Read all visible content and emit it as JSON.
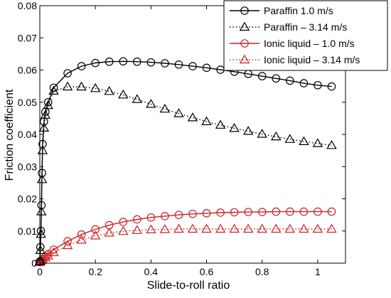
{
  "chart_data": {
    "type": "line",
    "title": "",
    "xlabel": "Slide-to-roll ratio",
    "ylabel": "Friction coefficient",
    "xlim": [
      0,
      1.1
    ],
    "ylim": [
      0,
      0.08
    ],
    "x_ticks": [
      0,
      0.2,
      0.4,
      0.6,
      0.8,
      1
    ],
    "x_tick_labels": [
      "0",
      "0.2",
      "0.4",
      "0.6",
      "0.8",
      "1"
    ],
    "y_ticks": [
      0,
      0.01,
      0.02,
      0.03,
      0.04,
      0.05,
      0.06,
      0.07,
      0.08
    ],
    "y_tick_labels": [
      "0",
      "0.01",
      "0.02",
      "0.03",
      "0.04",
      "0.05",
      "0.06",
      "0.07",
      "0.08"
    ],
    "grid": false,
    "legend_position": "top-right",
    "series": [
      {
        "name": "Paraffin 1.0 m/s",
        "color": "#000000",
        "line_style": "solid",
        "marker": "circle",
        "x": [
          0,
          0.002,
          0.004,
          0.006,
          0.008,
          0.01,
          0.015,
          0.02,
          0.03,
          0.05,
          0.1,
          0.15,
          0.2,
          0.25,
          0.3,
          0.35,
          0.4,
          0.45,
          0.5,
          0.55,
          0.6,
          0.65,
          0.7,
          0.75,
          0.8,
          0.85,
          0.9,
          0.95,
          1.0,
          1.05
        ],
        "y": [
          0.0005,
          0.005,
          0.01,
          0.018,
          0.028,
          0.037,
          0.044,
          0.047,
          0.05,
          0.0545,
          0.059,
          0.0612,
          0.0622,
          0.0626,
          0.0627,
          0.0626,
          0.0624,
          0.0621,
          0.0617,
          0.0612,
          0.0607,
          0.0601,
          0.0595,
          0.0588,
          0.0581,
          0.0574,
          0.0567,
          0.0559,
          0.0553,
          0.0549
        ]
      },
      {
        "name": "Paraffin – 3.14 m/s",
        "color": "#000000",
        "line_style": "dotted",
        "marker": "triangle",
        "x": [
          0,
          0.002,
          0.004,
          0.006,
          0.008,
          0.01,
          0.015,
          0.02,
          0.03,
          0.05,
          0.1,
          0.15,
          0.2,
          0.25,
          0.3,
          0.35,
          0.4,
          0.45,
          0.5,
          0.55,
          0.6,
          0.65,
          0.7,
          0.75,
          0.8,
          0.85,
          0.9,
          0.95,
          1.0,
          1.05
        ],
        "y": [
          0.0005,
          0.004,
          0.009,
          0.016,
          0.026,
          0.035,
          0.042,
          0.046,
          0.049,
          0.0535,
          0.0548,
          0.0548,
          0.0543,
          0.0534,
          0.0523,
          0.0509,
          0.0494,
          0.0479,
          0.0465,
          0.0452,
          0.044,
          0.0429,
          0.0419,
          0.041,
          0.0401,
          0.0393,
          0.0385,
          0.0378,
          0.0372,
          0.0366
        ]
      },
      {
        "name": "Ionic liquid – 1.0 m/s",
        "color": "#cc2222",
        "line_style": "solid",
        "marker": "circle",
        "x": [
          0,
          0.005,
          0.01,
          0.02,
          0.03,
          0.05,
          0.1,
          0.15,
          0.2,
          0.25,
          0.3,
          0.35,
          0.4,
          0.45,
          0.5,
          0.55,
          0.6,
          0.65,
          0.7,
          0.75,
          0.8,
          0.85,
          0.9,
          0.95,
          1.0,
          1.05
        ],
        "y": [
          0.0003,
          0.0008,
          0.0013,
          0.002,
          0.0028,
          0.0042,
          0.0068,
          0.0089,
          0.0105,
          0.0118,
          0.0128,
          0.0136,
          0.0142,
          0.0146,
          0.015,
          0.0153,
          0.0155,
          0.0157,
          0.0158,
          0.0159,
          0.0159,
          0.016,
          0.016,
          0.016,
          0.016,
          0.016
        ]
      },
      {
        "name": "Ionic liquid – 3.14 m/s",
        "color": "#cc2222",
        "line_style": "dotted",
        "marker": "triangle",
        "x": [
          0,
          0.005,
          0.01,
          0.02,
          0.03,
          0.05,
          0.1,
          0.15,
          0.2,
          0.25,
          0.3,
          0.35,
          0.4,
          0.45,
          0.5,
          0.55,
          0.6,
          0.65,
          0.7,
          0.75,
          0.8,
          0.85,
          0.9,
          0.95,
          1.0,
          1.05
        ],
        "y": [
          0.0003,
          0.0007,
          0.0011,
          0.0017,
          0.0023,
          0.0033,
          0.0055,
          0.0072,
          0.0085,
          0.0094,
          0.0099,
          0.0102,
          0.0104,
          0.0105,
          0.0106,
          0.0106,
          0.0106,
          0.0106,
          0.0106,
          0.0106,
          0.0106,
          0.0106,
          0.0106,
          0.0106,
          0.0106,
          0.0106
        ]
      }
    ]
  }
}
